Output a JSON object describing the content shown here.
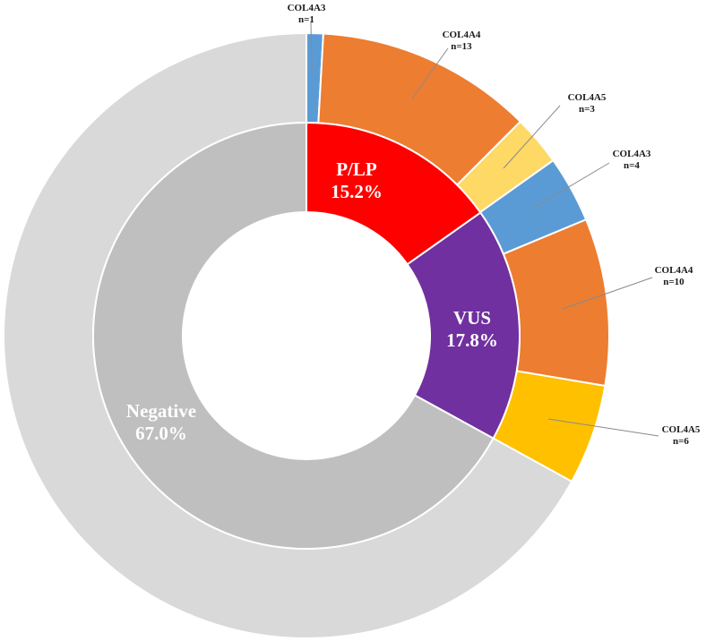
{
  "chart_data": {
    "type": "pie",
    "style": "nested-donut",
    "inner_ring": [
      {
        "name": "P/LP",
        "value": 15.2,
        "label": "15.2%",
        "color": "#ff0000"
      },
      {
        "name": "VUS",
        "value": 17.8,
        "label": "17.8%",
        "color": "#7030a0"
      },
      {
        "name": "Negative",
        "value": 67.0,
        "label": "67.0%",
        "color": "#bfbfbf"
      }
    ],
    "outer_ring": [
      {
        "gene": "COL4A3",
        "count_label": "n=1",
        "n": 1,
        "color": "#5b9bd5"
      },
      {
        "gene": "COL4A4",
        "count_label": "n=13",
        "n": 13,
        "color": "#ed7d31"
      },
      {
        "gene": "COL4A5",
        "count_label": "n=3",
        "n": 3,
        "color": "#ffd966"
      },
      {
        "gene": "COL4A3",
        "count_label": "n=4",
        "n": 4,
        "color": "#5b9bd5"
      },
      {
        "gene": "COL4A4",
        "count_label": "n=10",
        "n": 10,
        "color": "#ed7d31"
      },
      {
        "gene": "COL4A5",
        "count_label": "n=6",
        "n": 6,
        "color": "#ffc000"
      },
      {
        "gene": "",
        "count_label": "",
        "n": 0,
        "color": "#d9d9d9",
        "rest": true
      }
    ],
    "title": "",
    "legend": "none"
  }
}
